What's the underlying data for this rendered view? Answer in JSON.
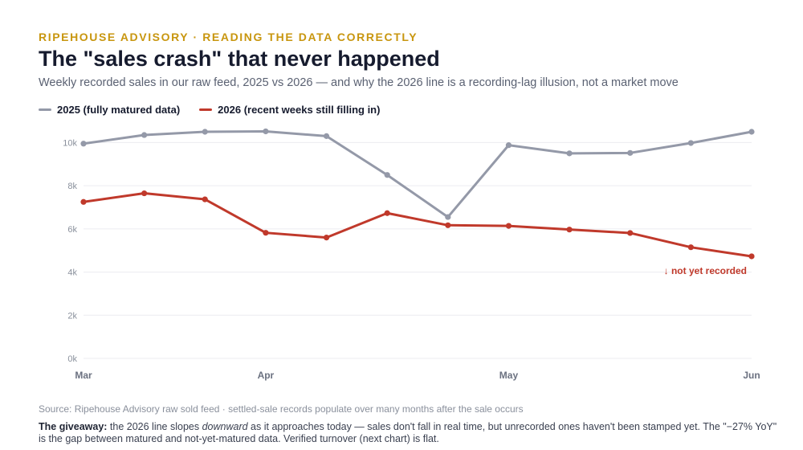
{
  "header": {
    "eyebrow": "RIPEHOUSE ADVISORY · READING THE DATA CORRECTLY",
    "title": "The \"sales crash\" that never happened",
    "subtitle": "Weekly recorded sales in our raw feed, 2025 vs 2026 — and why the 2026 line is a recording-lag illusion, not a market move"
  },
  "colors": {
    "series_2025": "#9499a8",
    "series_2026": "#c0392b",
    "grid": "#ececf0",
    "tick": "#8a909c"
  },
  "chart_data": {
    "type": "line",
    "x": [
      0,
      1,
      2,
      3,
      4,
      5,
      6,
      7,
      8,
      9,
      10,
      11
    ],
    "x_tick_labels": [
      {
        "at": 0,
        "label": "Mar"
      },
      {
        "at": 3,
        "label": "Apr"
      },
      {
        "at": 7,
        "label": "May"
      },
      {
        "at": 11,
        "label": "Jun"
      }
    ],
    "yticks": [
      {
        "value": 0,
        "label": "0k"
      },
      {
        "value": 2000,
        "label": "2k"
      },
      {
        "value": 4000,
        "label": "4k"
      },
      {
        "value": 6000,
        "label": "6k"
      },
      {
        "value": 8000,
        "label": "8k"
      },
      {
        "value": 10000,
        "label": "10k"
      }
    ],
    "ylim": [
      0,
      10500
    ],
    "grid": true,
    "legend_position": "top-left",
    "series": [
      {
        "name": "2025 (fully matured data)",
        "values": [
          9950,
          10350,
          10500,
          10520,
          10300,
          8500,
          6550,
          9880,
          9500,
          9520,
          9980,
          10500
        ]
      },
      {
        "name": "2026 (recent weeks still filling in)",
        "values": [
          7250,
          7650,
          7370,
          5820,
          5600,
          6730,
          6170,
          6140,
          5970,
          5810,
          5150,
          4730
        ]
      }
    ],
    "annotation": {
      "text": "↓ not yet recorded",
      "series": 1,
      "near_index": 11
    }
  },
  "footer": {
    "source": "Source: Ripehouse Advisory raw sold feed · settled-sale records populate over many months after the sale occurs",
    "giveaway_label": "The giveaway:",
    "giveaway_text_1": " the 2026 line slopes ",
    "giveaway_emphasis": "downward",
    "giveaway_text_2": " as it approaches today — sales don't fall in real time, but unrecorded ones haven't been stamped yet. The \"−27% YoY\" is the gap between matured and not-yet-matured data. Verified turnover (next chart) is flat."
  }
}
